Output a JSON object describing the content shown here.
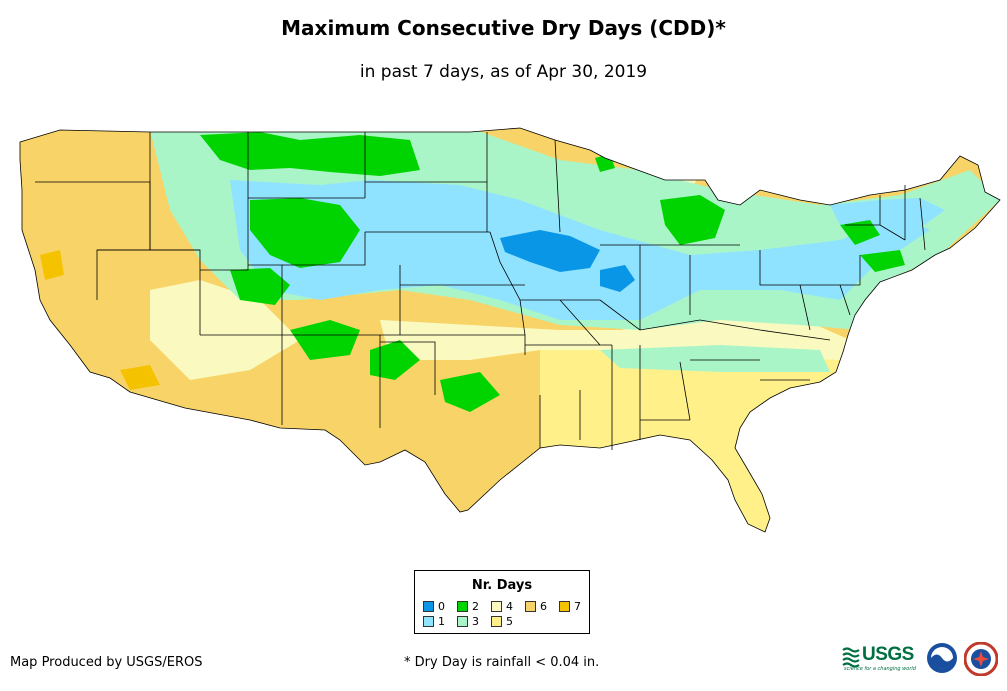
{
  "title": "Maximum Consecutive Dry Days (CDD)*",
  "subtitle": "in past 7 days, as of Apr 30, 2019",
  "legend": {
    "title": "Nr. Days",
    "items": [
      {
        "label": "0",
        "color": "#0a96e6"
      },
      {
        "label": "1",
        "color": "#8fe3ff"
      },
      {
        "label": "2",
        "color": "#00d400"
      },
      {
        "label": "3",
        "color": "#aaf5c8"
      },
      {
        "label": "4",
        "color": "#fafac0"
      },
      {
        "label": "5",
        "color": "#fff08a"
      },
      {
        "label": "6",
        "color": "#f8d468"
      },
      {
        "label": "7",
        "color": "#f5c200"
      }
    ]
  },
  "credit": "Map Produced by USGS/EROS",
  "footnote": "* Dry Day is rainfall < 0.04 in.",
  "logos": {
    "usgs_text": "USGS",
    "usgs_tagline": "science for a changing world",
    "noaa_icon": "noaa-logo-icon",
    "nws_icon": "nws-logo-icon"
  }
}
